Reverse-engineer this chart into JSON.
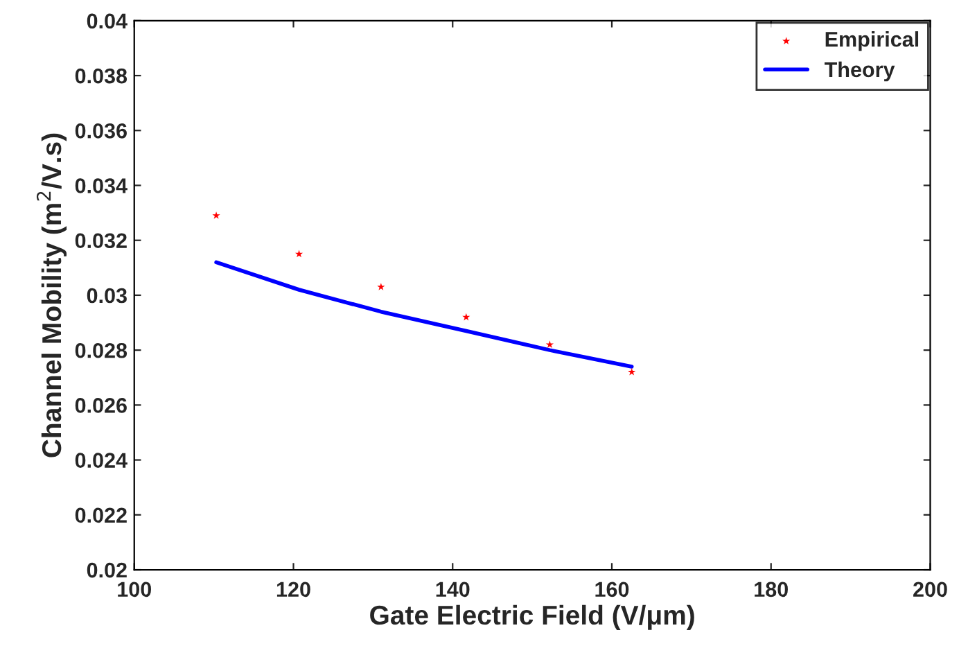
{
  "chart_data": {
    "type": "line",
    "xlabel": "Gate Electric Field (V/μm)",
    "ylabel": "Channel Mobility (m$^{2}$/V.s)",
    "xlim": [
      100,
      200
    ],
    "xticks": [
      100,
      120,
      140,
      160,
      180,
      200
    ],
    "ylim": [
      0.02,
      0.04
    ],
    "yticks": [
      0.02,
      0.022,
      0.024,
      0.026,
      0.028,
      0.03,
      0.032,
      0.034,
      0.036,
      0.038,
      0.04
    ],
    "grid": false,
    "legend": "top right",
    "series": [
      {
        "name": "Empirical",
        "type": "scatter",
        "marker": "star",
        "color": "#ff0000",
        "x": [
          110.3,
          120.7,
          131.0,
          141.7,
          152.2,
          162.5
        ],
        "values": [
          0.0329,
          0.0315,
          0.0303,
          0.0292,
          0.0282,
          0.0272
        ]
      },
      {
        "name": "Theory",
        "color": "#0000ff",
        "x": [
          110.3,
          120.7,
          131.0,
          141.7,
          152.2,
          162.5
        ],
        "values": [
          0.0312,
          0.0302,
          0.0294,
          0.0287,
          0.028,
          0.0274
        ]
      }
    ]
  }
}
